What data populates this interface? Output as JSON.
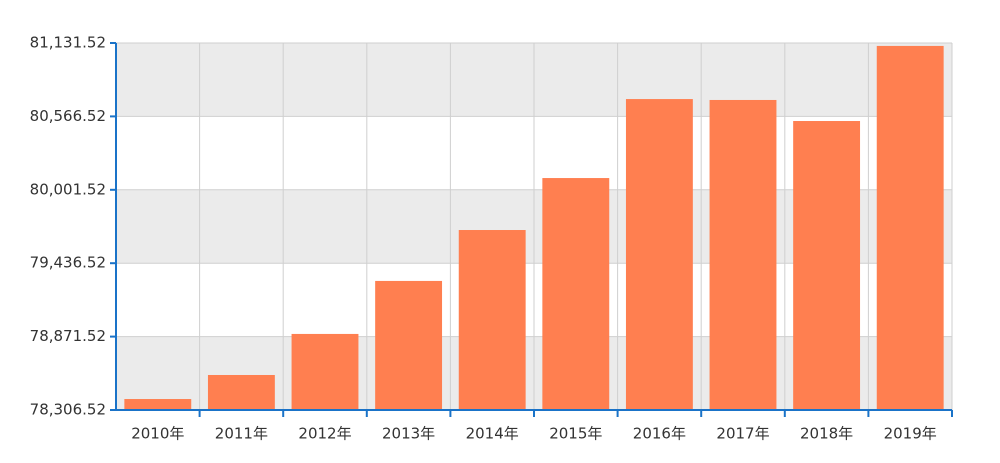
{
  "chart_data": {
    "type": "bar",
    "categories": [
      "2010年",
      "2011年",
      "2012年",
      "2013年",
      "2014年",
      "2015年",
      "2016年",
      "2017年",
      "2018年",
      "2019年"
    ],
    "values": [
      78391,
      78576,
      78892,
      79300,
      79692,
      80092,
      80700,
      80693,
      80531,
      81109
    ],
    "color": "#ff7f50",
    "ylim": [
      78306.52,
      81131.52
    ],
    "yticks": [
      {
        "value": 78306.52,
        "label": "78,306.52"
      },
      {
        "value": 78871.52,
        "label": "78,871.52"
      },
      {
        "value": 79436.52,
        "label": "79,436.52"
      },
      {
        "value": 80001.52,
        "label": "80,001.52"
      },
      {
        "value": 80566.52,
        "label": "80,566.52"
      },
      {
        "value": 81131.52,
        "label": "81,131.52"
      }
    ],
    "grid": true
  }
}
